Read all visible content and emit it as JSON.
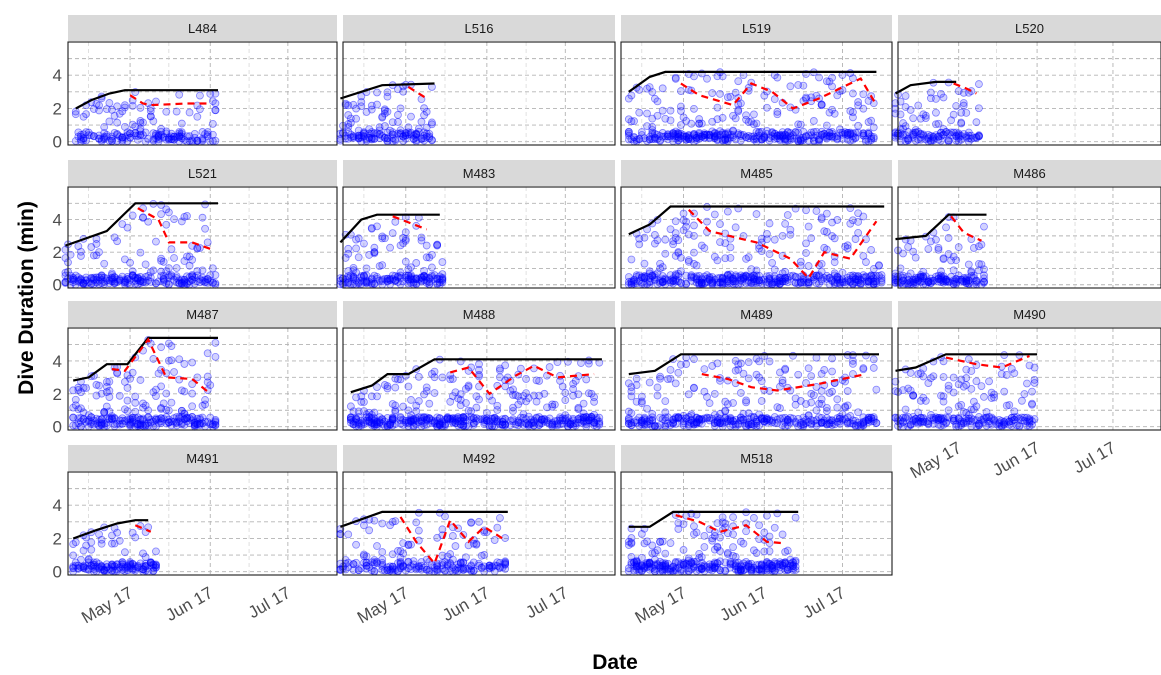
{
  "chart_data": {
    "type": "scatter",
    "xlabel": "Date",
    "ylabel": "Dive Duration (min)",
    "x_ticks": [
      "May 17",
      "Jun 17",
      "Jul 17"
    ],
    "y_ticks": [
      "0",
      "2",
      "4"
    ],
    "xlim": [
      "2017-04-23",
      "2017-08-05"
    ],
    "ylim": [
      -0.2,
      6.0
    ],
    "grid": true,
    "legend": "none",
    "colors": {
      "points": "#0000ff",
      "max_line": "#000000",
      "mean_line": "#ff0000",
      "strip": "#d9d9d9"
    },
    "series_meaning": [
      "points",
      "max_line",
      "mean_line"
    ],
    "panels": [
      {
        "id": "L484",
        "start": "2017-04-26",
        "end": "2017-06-20",
        "max_line": [
          [
            "2017-04-26",
            2.0
          ],
          [
            "2017-05-02",
            2.5
          ],
          [
            "2017-05-09",
            2.9
          ],
          [
            "2017-05-15",
            3.1
          ],
          [
            "2017-06-20",
            3.1
          ]
        ],
        "mean_line": [
          [
            "2017-05-17",
            2.8
          ],
          [
            "2017-05-22",
            2.3
          ],
          [
            "2017-05-25",
            2.2
          ],
          [
            "2017-06-08",
            2.3
          ],
          [
            "2017-06-16",
            2.3
          ]
        ],
        "point_days": 40
      },
      {
        "id": "L516",
        "start": "2017-04-22",
        "end": "2017-05-28",
        "max_line": [
          [
            "2017-04-22",
            2.6
          ],
          [
            "2017-04-30",
            3.0
          ],
          [
            "2017-05-08",
            3.4
          ],
          [
            "2017-05-28",
            3.5
          ]
        ],
        "mean_line": [
          [
            "2017-05-18",
            3.3
          ],
          [
            "2017-05-25",
            2.6
          ]
        ],
        "point_days": 33
      },
      {
        "id": "L519",
        "start": "2017-04-26",
        "end": "2017-07-30",
        "max_line": [
          [
            "2017-04-26",
            3.0
          ],
          [
            "2017-05-04",
            3.9
          ],
          [
            "2017-05-10",
            4.2
          ],
          [
            "2017-07-30",
            4.2
          ]
        ],
        "mean_line": [
          [
            "2017-05-16",
            3.5
          ],
          [
            "2017-05-23",
            2.8
          ],
          [
            "2017-06-05",
            2.2
          ],
          [
            "2017-06-12",
            3.5
          ],
          [
            "2017-06-20",
            3.0
          ],
          [
            "2017-06-28",
            2.0
          ],
          [
            "2017-07-08",
            2.6
          ],
          [
            "2017-07-24",
            3.8
          ],
          [
            "2017-07-30",
            2.2
          ]
        ],
        "point_days": 85
      },
      {
        "id": "L520",
        "start": "2017-04-22",
        "end": "2017-05-26",
        "max_line": [
          [
            "2017-04-22",
            2.9
          ],
          [
            "2017-04-28",
            3.4
          ],
          [
            "2017-05-08",
            3.6
          ],
          [
            "2017-05-16",
            3.6
          ]
        ],
        "mean_line": [
          [
            "2017-05-15",
            3.5
          ],
          [
            "2017-05-20",
            3.2
          ],
          [
            "2017-05-24",
            2.9
          ]
        ],
        "point_days": 30
      },
      {
        "id": "L521",
        "start": "2017-04-22",
        "end": "2017-06-20",
        "max_line": [
          [
            "2017-04-22",
            2.4
          ],
          [
            "2017-05-08",
            3.3
          ],
          [
            "2017-05-19",
            5.0
          ],
          [
            "2017-06-20",
            5.0
          ]
        ],
        "mean_line": [
          [
            "2017-05-20",
            4.7
          ],
          [
            "2017-05-28",
            4.0
          ],
          [
            "2017-06-01",
            2.6
          ],
          [
            "2017-06-10",
            2.6
          ],
          [
            "2017-06-17",
            2.2
          ]
        ],
        "point_days": 50
      },
      {
        "id": "M483",
        "start": "2017-04-22",
        "end": "2017-06-01",
        "max_line": [
          [
            "2017-04-22",
            2.6
          ],
          [
            "2017-04-30",
            4.0
          ],
          [
            "2017-05-06",
            4.3
          ],
          [
            "2017-05-30",
            4.3
          ]
        ],
        "mean_line": [
          [
            "2017-05-12",
            4.2
          ],
          [
            "2017-05-25",
            3.4
          ]
        ],
        "point_days": 34
      },
      {
        "id": "M485",
        "start": "2017-04-26",
        "end": "2017-08-02",
        "max_line": [
          [
            "2017-04-26",
            3.1
          ],
          [
            "2017-05-04",
            3.7
          ],
          [
            "2017-05-12",
            4.8
          ],
          [
            "2017-08-02",
            4.8
          ]
        ],
        "mean_line": [
          [
            "2017-05-19",
            4.6
          ],
          [
            "2017-05-27",
            3.3
          ],
          [
            "2017-06-06",
            2.9
          ],
          [
            "2017-06-14",
            2.6
          ],
          [
            "2017-06-27",
            1.6
          ],
          [
            "2017-07-04",
            0.4
          ],
          [
            "2017-07-10",
            2.0
          ],
          [
            "2017-07-20",
            1.6
          ],
          [
            "2017-07-30",
            3.9
          ]
        ],
        "point_days": 90
      },
      {
        "id": "M486",
        "start": "2017-04-22",
        "end": "2017-05-28",
        "max_line": [
          [
            "2017-04-22",
            2.8
          ],
          [
            "2017-05-04",
            3.0
          ],
          [
            "2017-05-13",
            4.3
          ],
          [
            "2017-05-28",
            4.3
          ]
        ],
        "mean_line": [
          [
            "2017-05-14",
            4.2
          ],
          [
            "2017-05-19",
            3.2
          ],
          [
            "2017-05-26",
            2.7
          ]
        ],
        "point_days": 33
      },
      {
        "id": "M487",
        "start": "2017-04-25",
        "end": "2017-06-20",
        "max_line": [
          [
            "2017-04-25",
            2.8
          ],
          [
            "2017-05-01",
            3.0
          ],
          [
            "2017-05-08",
            3.8
          ],
          [
            "2017-05-16",
            3.8
          ],
          [
            "2017-05-24",
            5.4
          ],
          [
            "2017-06-20",
            5.4
          ]
        ],
        "mean_line": [
          [
            "2017-05-10",
            3.5
          ],
          [
            "2017-05-15",
            3.4
          ],
          [
            "2017-05-24",
            5.3
          ],
          [
            "2017-05-31",
            3.0
          ],
          [
            "2017-06-10",
            2.9
          ],
          [
            "2017-06-17",
            2.0
          ]
        ],
        "point_days": 52
      },
      {
        "id": "M488",
        "start": "2017-04-26",
        "end": "2017-07-31",
        "max_line": [
          [
            "2017-04-26",
            2.1
          ],
          [
            "2017-05-04",
            2.5
          ],
          [
            "2017-05-10",
            3.2
          ],
          [
            "2017-05-18",
            3.2
          ],
          [
            "2017-05-28",
            4.1
          ],
          [
            "2017-07-31",
            4.1
          ]
        ],
        "mean_line": [
          [
            "2017-06-03",
            3.3
          ],
          [
            "2017-06-10",
            3.6
          ],
          [
            "2017-06-18",
            2.0
          ],
          [
            "2017-06-28",
            3.1
          ],
          [
            "2017-07-05",
            3.7
          ],
          [
            "2017-07-14",
            3.0
          ],
          [
            "2017-07-28",
            3.2
          ]
        ],
        "point_days": 95
      },
      {
        "id": "M489",
        "start": "2017-04-26",
        "end": "2017-07-31",
        "max_line": [
          [
            "2017-04-26",
            3.2
          ],
          [
            "2017-05-06",
            3.4
          ],
          [
            "2017-05-16",
            4.4
          ],
          [
            "2017-07-31",
            4.4
          ]
        ],
        "mean_line": [
          [
            "2017-05-24",
            3.2
          ],
          [
            "2017-06-03",
            2.9
          ],
          [
            "2017-06-12",
            2.4
          ],
          [
            "2017-06-22",
            2.2
          ],
          [
            "2017-07-08",
            2.6
          ],
          [
            "2017-07-26",
            3.2
          ]
        ],
        "point_days": 85
      },
      {
        "id": "M490",
        "start": "2017-04-22",
        "end": "2017-06-17",
        "max_line": [
          [
            "2017-04-22",
            3.4
          ],
          [
            "2017-04-30",
            3.6
          ],
          [
            "2017-05-12",
            4.4
          ],
          [
            "2017-06-17",
            4.4
          ]
        ],
        "mean_line": [
          [
            "2017-05-12",
            4.2
          ],
          [
            "2017-05-24",
            3.8
          ],
          [
            "2017-06-03",
            3.6
          ],
          [
            "2017-06-14",
            4.3
          ]
        ],
        "point_days": 50
      },
      {
        "id": "M491",
        "start": "2017-04-25",
        "end": "2017-05-28",
        "max_line": [
          [
            "2017-04-25",
            2.0
          ],
          [
            "2017-05-04",
            2.5
          ],
          [
            "2017-05-12",
            2.9
          ],
          [
            "2017-05-19",
            3.1
          ],
          [
            "2017-05-24",
            3.1
          ]
        ],
        "mean_line": [
          [
            "2017-05-19",
            2.8
          ],
          [
            "2017-05-25",
            2.4
          ]
        ],
        "point_days": 30
      },
      {
        "id": "M492",
        "start": "2017-04-22",
        "end": "2017-06-25",
        "max_line": [
          [
            "2017-04-22",
            2.7
          ],
          [
            "2017-05-08",
            3.6
          ],
          [
            "2017-06-25",
            3.6
          ]
        ],
        "mean_line": [
          [
            "2017-05-15",
            3.3
          ],
          [
            "2017-05-21",
            1.8
          ],
          [
            "2017-05-28",
            0.5
          ],
          [
            "2017-06-03",
            3.1
          ],
          [
            "2017-06-10",
            1.8
          ],
          [
            "2017-06-16",
            2.7
          ],
          [
            "2017-06-23",
            2.0
          ]
        ],
        "point_days": 45
      },
      {
        "id": "M518",
        "start": "2017-04-26",
        "end": "2017-06-30",
        "max_line": [
          [
            "2017-04-26",
            2.7
          ],
          [
            "2017-05-04",
            2.7
          ],
          [
            "2017-05-13",
            3.6
          ],
          [
            "2017-06-30",
            3.6
          ]
        ],
        "mean_line": [
          [
            "2017-05-14",
            3.4
          ],
          [
            "2017-05-23",
            3.0
          ],
          [
            "2017-05-31",
            2.4
          ],
          [
            "2017-06-10",
            2.8
          ],
          [
            "2017-06-18",
            1.8
          ],
          [
            "2017-06-25",
            1.7
          ]
        ],
        "point_days": 60
      }
    ]
  }
}
